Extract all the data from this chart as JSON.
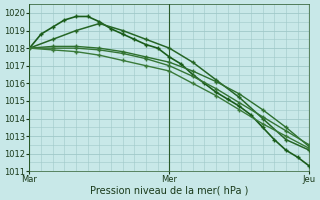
{
  "bg_color": "#c8e8e8",
  "plot_bg_color": "#c8e8e8",
  "grid_color": "#a0c8c8",
  "xlabel": "Pression niveau de la mer( hPa )",
  "ylim": [
    1011,
    1020.5
  ],
  "yticks": [
    1011,
    1012,
    1013,
    1014,
    1015,
    1016,
    1017,
    1018,
    1019,
    1020
  ],
  "xtick_labels": [
    "Mar",
    "Mer",
    "Jeu"
  ],
  "xtick_positions": [
    0,
    24,
    48
  ],
  "xlim": [
    0,
    48
  ],
  "series": [
    {
      "x": [
        0,
        2,
        4,
        6,
        8,
        10,
        12,
        14,
        16,
        18,
        20,
        22,
        24,
        26,
        28,
        30,
        32,
        34,
        36,
        38,
        40,
        42,
        44,
        46,
        48
      ],
      "y": [
        1018.0,
        1018.8,
        1019.2,
        1019.6,
        1019.8,
        1019.8,
        1019.5,
        1019.1,
        1018.8,
        1018.5,
        1018.2,
        1018.0,
        1017.5,
        1017.1,
        1016.5,
        1016.0,
        1015.5,
        1015.1,
        1014.7,
        1014.2,
        1013.5,
        1012.8,
        1012.2,
        1011.8,
        1011.3
      ],
      "color": "#1a5c1a",
      "lw": 1.2,
      "marker": "+"
    },
    {
      "x": [
        0,
        4,
        8,
        12,
        16,
        20,
        24,
        28,
        32,
        36,
        40,
        44,
        48
      ],
      "y": [
        1018.0,
        1018.5,
        1019.0,
        1019.4,
        1019.0,
        1018.5,
        1018.0,
        1017.2,
        1016.2,
        1015.2,
        1014.0,
        1012.8,
        1012.2
      ],
      "color": "#266626",
      "lw": 1.1,
      "marker": "+"
    },
    {
      "x": [
        0,
        4,
        8,
        12,
        16,
        20,
        24,
        28,
        32,
        36,
        40,
        44,
        48
      ],
      "y": [
        1018.0,
        1018.1,
        1018.1,
        1018.0,
        1017.8,
        1017.5,
        1017.2,
        1016.7,
        1016.1,
        1015.4,
        1014.5,
        1013.5,
        1012.4
      ],
      "color": "#2e702e",
      "lw": 1.0,
      "marker": "+"
    },
    {
      "x": [
        0,
        4,
        8,
        12,
        16,
        20,
        24,
        28,
        32,
        36,
        40,
        44,
        48
      ],
      "y": [
        1018.0,
        1018.0,
        1018.0,
        1017.9,
        1017.7,
        1017.4,
        1017.0,
        1016.4,
        1015.7,
        1014.9,
        1014.1,
        1013.3,
        1012.5
      ],
      "color": "#357535",
      "lw": 1.0,
      "marker": "+"
    },
    {
      "x": [
        0,
        4,
        8,
        12,
        16,
        20,
        24,
        28,
        32,
        36,
        40,
        44,
        48
      ],
      "y": [
        1018.0,
        1017.9,
        1017.8,
        1017.6,
        1017.3,
        1017.0,
        1016.7,
        1016.0,
        1015.3,
        1014.5,
        1013.7,
        1013.0,
        1012.3
      ],
      "color": "#3a7a3a",
      "lw": 1.0,
      "marker": "+"
    }
  ]
}
